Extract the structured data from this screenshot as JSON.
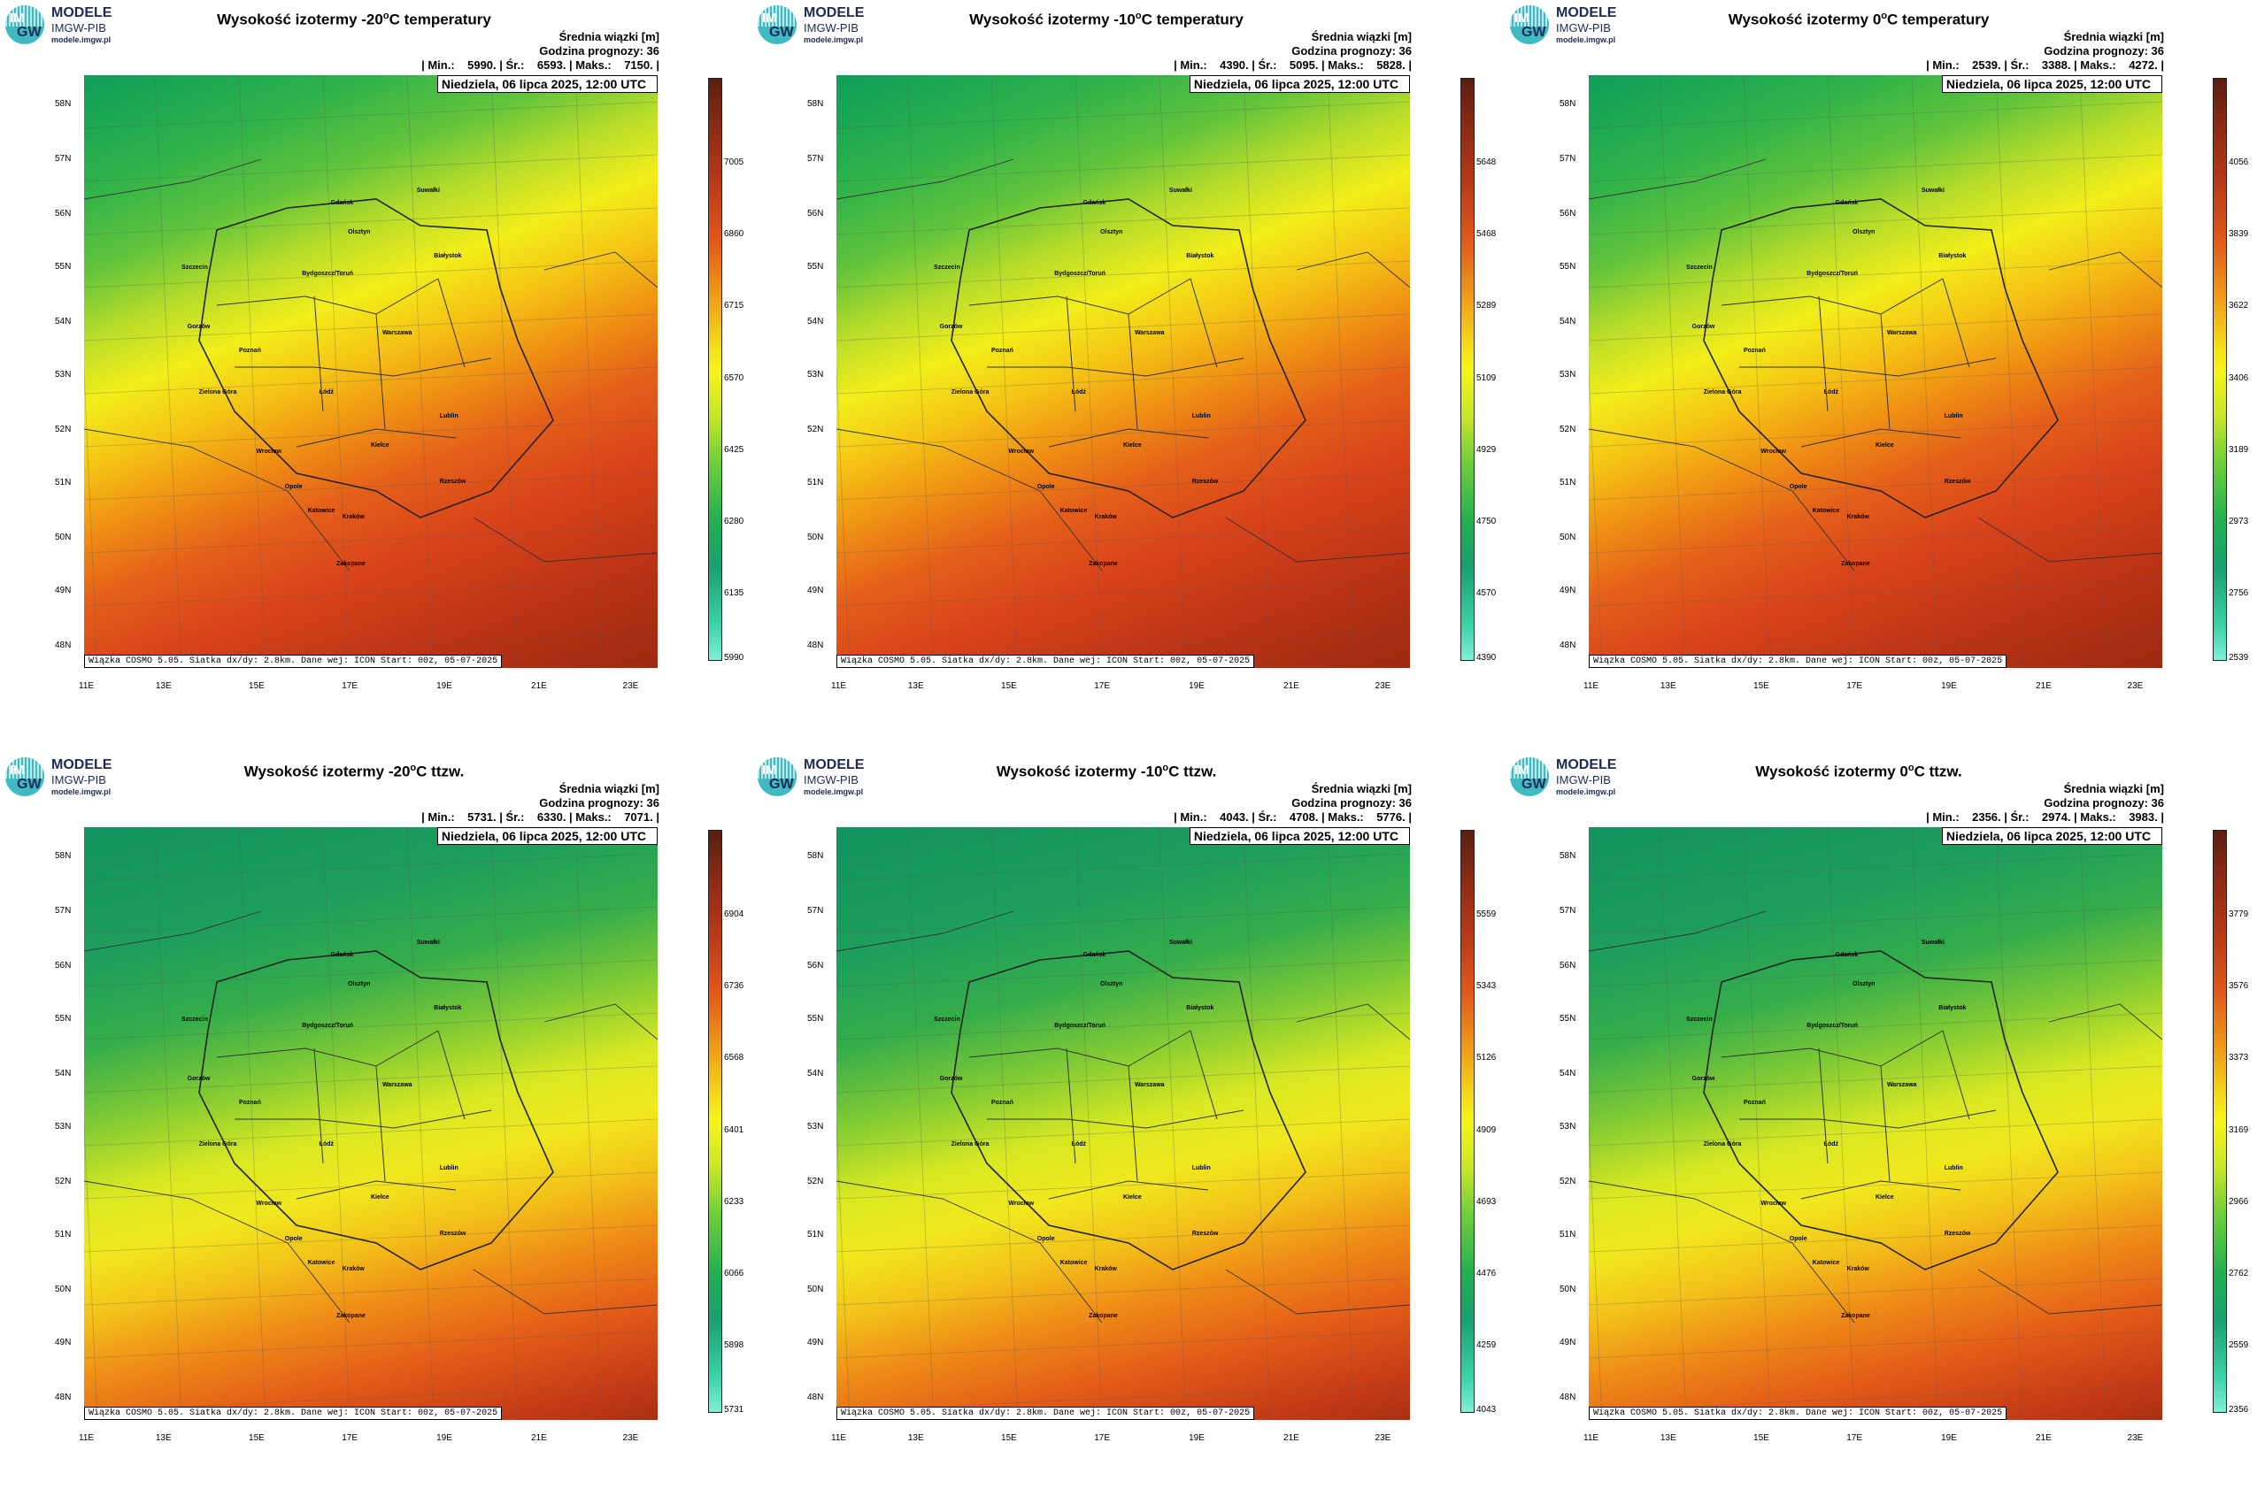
{
  "logo": {
    "line1": "MODELE",
    "line2": "IMGW-PIB",
    "line3": "modele.imgw.pl",
    "im": "IM",
    "gw": "GW"
  },
  "common": {
    "header_label": "Średnia wiązki [m]",
    "forecast_hour": "Godzina prognozy: 36",
    "date": "Niedziela, 06 lipca 2025, 12:00 UTC",
    "footer": "Wiązka COSMO 5.05. Siatka dx/dy: 2.8km. Dane wej: ICON Start: 00z, 05-07-2025",
    "lat_labels": [
      "58N",
      "57N",
      "56N",
      "55N",
      "54N",
      "53N",
      "52N",
      "51N",
      "50N",
      "49N",
      "48N"
    ],
    "lon_labels": [
      "11E",
      "13E",
      "15E",
      "17E",
      "19E",
      "21E",
      "23E"
    ],
    "cities": [
      "Gdańsk",
      "Suwałki",
      "Olsztyn",
      "Szczecin",
      "Bydgoszcz/Toruń",
      "Białystok",
      "Gorzów",
      "Poznań",
      "Warszawa",
      "Zielona Góra",
      "Łódź",
      "Lublin",
      "Wrocław",
      "Kielce",
      "Opole",
      "Rzeszów",
      "Katowice",
      "Kraków",
      "Zakopane"
    ]
  },
  "panels": [
    {
      "title_pre": "Wysokość izotermy -20",
      "title_post": "C temperatury",
      "stats": "| Min.:    5990. | Śr.:    6593. | Maks.:    7150. |",
      "ticks": [
        "7005",
        "6860",
        "6715",
        "6570",
        "6425",
        "6280",
        "6135",
        "5990"
      ],
      "colormap": "temp"
    },
    {
      "title_pre": "Wysokość izotermy -10",
      "title_post": "C temperatury",
      "stats": "| Min.:    4390. | Śr.:    5095. | Maks.:    5828. |",
      "ticks": [
        "5648",
        "5468",
        "5289",
        "5109",
        "4929",
        "4750",
        "4570",
        "4390"
      ],
      "colormap": "temp"
    },
    {
      "title_pre": "Wysokość izotermy 0",
      "title_post": "C temperatury",
      "stats": "| Min.:    2539. | Śr.:    3388. | Maks.:    4272. |",
      "ticks": [
        "4056",
        "3839",
        "3622",
        "3406",
        "3189",
        "2973",
        "2756",
        "2539"
      ],
      "colormap": "temp"
    },
    {
      "title_pre": "Wysokość izotermy -20",
      "title_post": "C ttzw.",
      "stats": "| Min.:    5731. | Śr.:    6330. | Maks.:    7071. |",
      "ticks": [
        "6904",
        "6736",
        "6568",
        "6401",
        "6233",
        "6066",
        "5898",
        "5731"
      ],
      "colormap": "ttzw"
    },
    {
      "title_pre": "Wysokość izotermy -10",
      "title_post": "C ttzw.",
      "stats": "| Min.:    4043. | Śr.:    4708. | Maks.:    5776. |",
      "ticks": [
        "5559",
        "5343",
        "5126",
        "4909",
        "4693",
        "4476",
        "4259",
        "4043"
      ],
      "colormap": "ttzw"
    },
    {
      "title_pre": "Wysokość izotermy 0",
      "title_post": "C ttzw.",
      "stats": "| Min.:    2356. | Śr.:    2974. | Maks.:    3983. |",
      "ticks": [
        "3779",
        "3576",
        "3373",
        "3169",
        "2966",
        "2762",
        "2559",
        "2356"
      ],
      "colormap": "ttzw"
    }
  ]
}
